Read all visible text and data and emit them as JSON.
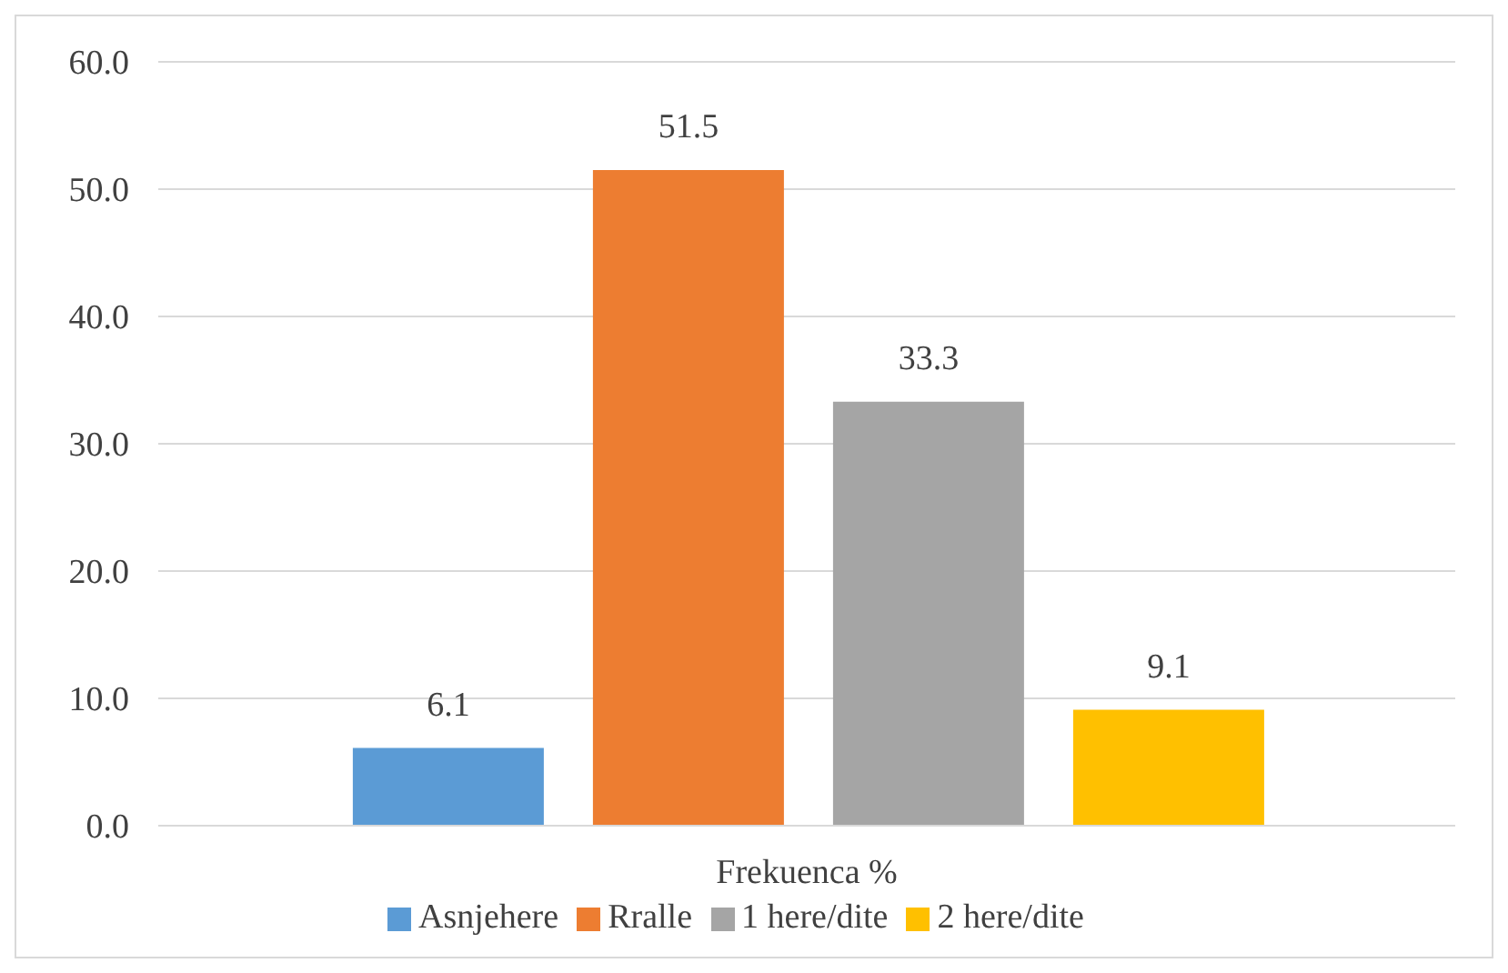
{
  "chart_data": {
    "type": "bar",
    "categories": [
      "Frekuenca %"
    ],
    "series": [
      {
        "name": "Asnjehere",
        "color": "#5b9bd5",
        "values": [
          6.1
        ]
      },
      {
        "name": "Rralle",
        "color": "#ed7d31",
        "values": [
          51.5
        ]
      },
      {
        "name": "1 here/dite",
        "color": "#a5a5a5",
        "values": [
          33.3
        ]
      },
      {
        "name": "2 here/dite",
        "color": "#ffc000",
        "values": [
          9.1
        ]
      }
    ],
    "ylim": [
      0,
      60
    ],
    "yticks": [
      {
        "value": 0,
        "label": "0.0"
      },
      {
        "value": 10,
        "label": "10.0"
      },
      {
        "value": 20,
        "label": "20.0"
      },
      {
        "value": 30,
        "label": "30.0"
      },
      {
        "value": 40,
        "label": "40.0"
      },
      {
        "value": 50,
        "label": "50.0"
      },
      {
        "value": 60,
        "label": "60.0"
      }
    ],
    "grid": "y",
    "legend": "bottom",
    "data_labels": true
  }
}
